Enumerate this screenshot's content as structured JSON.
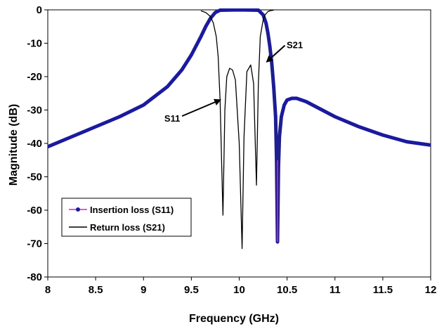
{
  "chart_data": {
    "type": "line",
    "title": "",
    "xlabel": "Frequency (GHz)",
    "ylabel": "Magnitude (dB)",
    "xlim": [
      8,
      12
    ],
    "ylim": [
      -80,
      0
    ],
    "x_ticks": [
      "8",
      "8.5",
      "9",
      "9.5",
      "10",
      "10.5",
      "11",
      "11.5",
      "12"
    ],
    "y_ticks": [
      "0",
      "-10",
      "-20",
      "-30",
      "-40",
      "-50",
      "-60",
      "-70",
      "-80"
    ],
    "grid": false,
    "legend_position": "bottom-left",
    "series": [
      {
        "name": "Insertion loss (S11)",
        "color": "#1f1f8f",
        "marker_color": "#1a1aa0",
        "line_color": "#e020c0",
        "x": [
          8.0,
          8.25,
          8.5,
          8.75,
          9.0,
          9.25,
          9.4,
          9.5,
          9.6,
          9.65,
          9.7,
          9.75,
          9.8,
          10.0,
          10.2,
          10.25,
          10.28,
          10.3,
          10.32,
          10.34,
          10.36,
          10.38,
          10.39,
          10.4,
          10.41,
          10.42,
          10.44,
          10.47,
          10.5,
          10.55,
          10.6,
          10.7,
          10.8,
          11.0,
          11.25,
          11.5,
          11.75,
          12.0
        ],
        "y": [
          -41,
          -38,
          -35,
          -32,
          -28.5,
          -23,
          -18,
          -13.5,
          -8,
          -5,
          -2.5,
          -0.8,
          -0.1,
          0,
          -0.1,
          -1.5,
          -4,
          -7,
          -11,
          -16,
          -23,
          -32,
          -45,
          -69.5,
          -47,
          -38,
          -32,
          -28.5,
          -27,
          -26.5,
          -26.5,
          -27.5,
          -29,
          -32,
          -35,
          -37.5,
          -39.5,
          -40.5
        ]
      },
      {
        "name": "Return loss (S21)",
        "color": "#000000",
        "x": [
          9.6,
          9.65,
          9.7,
          9.73,
          9.76,
          9.78,
          9.8,
          9.83,
          9.85,
          9.87,
          9.9,
          9.93,
          9.96,
          10.0,
          10.03,
          10.05,
          10.08,
          10.12,
          10.15,
          10.18,
          10.2,
          10.22,
          10.25,
          10.27,
          10.3,
          10.33,
          10.36
        ],
        "y": [
          -0.3,
          -0.8,
          -2,
          -4,
          -8,
          -14,
          -27,
          -61.5,
          -30,
          -20,
          -17.5,
          -18,
          -21,
          -40,
          -71.5,
          -38,
          -18.5,
          -16.5,
          -22,
          -52.5,
          -22,
          -8,
          -3,
          -1.5,
          -0.5,
          -0.2,
          -0.1
        ]
      }
    ],
    "annotations": [
      {
        "text": "S21",
        "x": 10.58,
        "y": -11.5,
        "arrow_to": [
          10.29,
          -15.5
        ]
      },
      {
        "text": "S11",
        "x": 9.3,
        "y": -33.5,
        "arrow_to": [
          9.8,
          -27
        ]
      }
    ]
  }
}
